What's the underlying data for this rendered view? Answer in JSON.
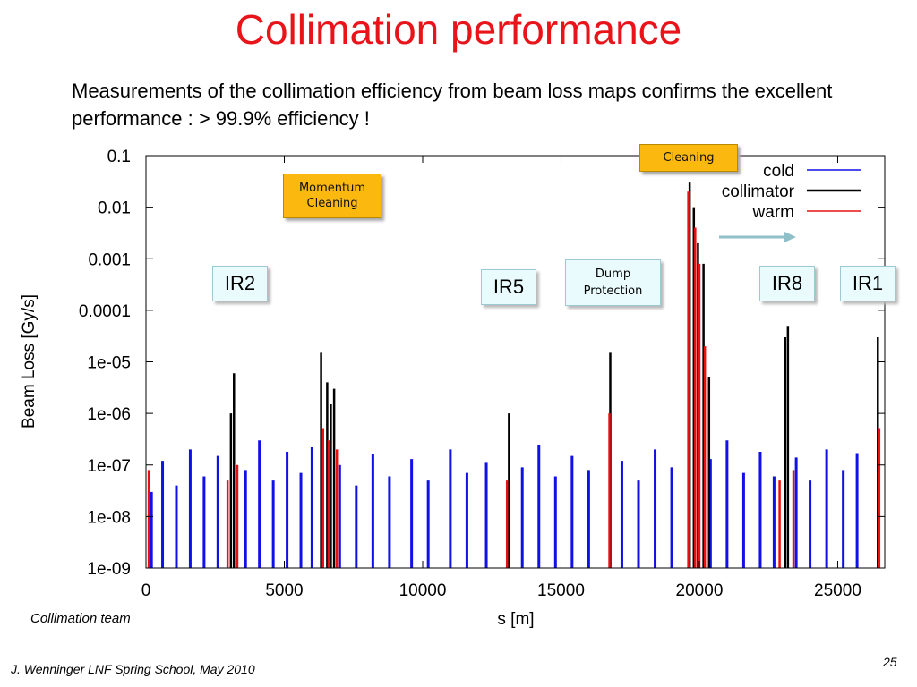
{
  "slide": {
    "title": "Collimation performance",
    "subtitle": "Measurements of the collimation efficiency from beam loss maps confirms the excellent performance : > 99.9% efficiency !",
    "credit": "Collimation team",
    "footer": "J. Wenninger LNF Spring School, May 2010",
    "page_number": "25"
  },
  "annotations": {
    "ir2": "IR2",
    "ir5": "IR5",
    "ir8": "IR8",
    "ir1": "IR1",
    "momentum_cleaning_line1": "Momentum",
    "momentum_cleaning_line2": "Cleaning",
    "cleaning": "Cleaning",
    "dump_line1": "Dump",
    "dump_line2": "Protection"
  },
  "chart_data": {
    "type": "bar",
    "title": "",
    "xlabel": "s [m]",
    "ylabel": "Beam Loss [Gy/s]",
    "xlim": [
      0,
      26700
    ],
    "ylim": [
      1e-09,
      0.1
    ],
    "yscale": "log",
    "grid": false,
    "legend_position": "top-right",
    "x_ticks": [
      0,
      5000,
      10000,
      15000,
      20000,
      25000
    ],
    "x_tick_labels": [
      "0",
      "5000",
      "10000",
      "15000",
      "20000",
      "25000"
    ],
    "y_ticks": [
      1e-09,
      1e-08,
      1e-07,
      1e-06,
      1e-05,
      0.0001,
      0.001,
      0.01,
      0.1
    ],
    "y_tick_labels": [
      "1e-09",
      "1e-08",
      "1e-07",
      "1e-06",
      "1e-05",
      "0.0001",
      "0.001",
      "0.01",
      "0.1"
    ],
    "colors": {
      "cold": "#1010e8",
      "collimator": "#000000",
      "warm": "#e81010"
    },
    "series": [
      {
        "name": "cold",
        "points": [
          [
            200,
            3e-08
          ],
          [
            600,
            1.2e-07
          ],
          [
            1100,
            4e-08
          ],
          [
            1600,
            2e-07
          ],
          [
            2100,
            6e-08
          ],
          [
            2600,
            1.5e-07
          ],
          [
            3600,
            8e-08
          ],
          [
            4100,
            3e-07
          ],
          [
            4600,
            5e-08
          ],
          [
            5100,
            1.8e-07
          ],
          [
            5600,
            7e-08
          ],
          [
            6000,
            2.2e-07
          ],
          [
            7000,
            1e-07
          ],
          [
            7600,
            4e-08
          ],
          [
            8200,
            1.6e-07
          ],
          [
            8800,
            6e-08
          ],
          [
            9600,
            1.3e-07
          ],
          [
            10200,
            5e-08
          ],
          [
            11000,
            2e-07
          ],
          [
            11600,
            7e-08
          ],
          [
            12300,
            1.1e-07
          ],
          [
            13600,
            9e-08
          ],
          [
            14200,
            2.4e-07
          ],
          [
            14800,
            6e-08
          ],
          [
            15400,
            1.5e-07
          ],
          [
            16000,
            8e-08
          ],
          [
            17200,
            1.2e-07
          ],
          [
            17800,
            5e-08
          ],
          [
            18400,
            2e-07
          ],
          [
            19000,
            9e-08
          ],
          [
            20400,
            1.3e-07
          ],
          [
            21000,
            3e-07
          ],
          [
            21600,
            7e-08
          ],
          [
            22200,
            1.8e-07
          ],
          [
            22700,
            6e-08
          ],
          [
            23500,
            1.4e-07
          ],
          [
            24000,
            5e-08
          ],
          [
            24600,
            2e-07
          ],
          [
            25200,
            8e-08
          ],
          [
            25700,
            1.7e-07
          ]
        ]
      },
      {
        "name": "collimator",
        "points": [
          [
            3070,
            1e-06
          ],
          [
            3180,
            6e-06
          ],
          [
            6330,
            1.5e-05
          ],
          [
            6550,
            4e-06
          ],
          [
            6680,
            1.5e-06
          ],
          [
            6800,
            3e-06
          ],
          [
            13120,
            1e-06
          ],
          [
            16780,
            1.5e-05
          ],
          [
            19650,
            0.03
          ],
          [
            19800,
            0.01
          ],
          [
            19950,
            0.002
          ],
          [
            20150,
            0.0008
          ],
          [
            20350,
            5e-06
          ],
          [
            23100,
            3e-05
          ],
          [
            23200,
            5e-05
          ],
          [
            26450,
            3e-05
          ]
        ]
      },
      {
        "name": "warm",
        "points": [
          [
            100,
            8e-08
          ],
          [
            2950,
            5e-08
          ],
          [
            3300,
            1e-07
          ],
          [
            6400,
            5e-07
          ],
          [
            6600,
            3e-07
          ],
          [
            6900,
            2e-07
          ],
          [
            13050,
            5e-08
          ],
          [
            16750,
            1e-06
          ],
          [
            19600,
            0.02
          ],
          [
            19850,
            0.004
          ],
          [
            20000,
            0.0008
          ],
          [
            20200,
            2e-05
          ],
          [
            22900,
            5e-08
          ],
          [
            23400,
            8e-08
          ],
          [
            26500,
            5e-07
          ]
        ]
      }
    ]
  }
}
